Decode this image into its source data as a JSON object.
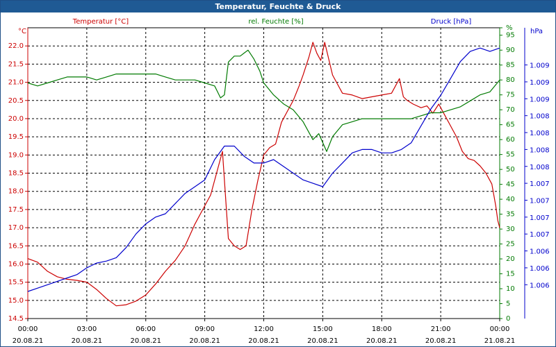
{
  "window": {
    "title": "Temperatur, Feuchte & Druck"
  },
  "colors": {
    "temperature": "#cc0000",
    "humidity": "#007a00",
    "pressure": "#0000cc",
    "grid": "#000000",
    "title_bg": "#1f5a94"
  },
  "chart_data": {
    "type": "line",
    "title": "Temperatur, Feuchte & Druck",
    "legend": {
      "temperature": "Temperatur [°C]",
      "humidity": "rel. Feuchte [%]",
      "pressure": "Druck [hPa]"
    },
    "units": {
      "left": "°C",
      "right_humidity": "%",
      "right_pressure": "hPa"
    },
    "x_axis": {
      "range_hours": [
        0,
        24
      ],
      "ticks": [
        {
          "h": 0,
          "time": "00:00",
          "date": "20.08.21"
        },
        {
          "h": 3,
          "time": "03:00",
          "date": "20.08.21"
        },
        {
          "h": 6,
          "time": "06:00",
          "date": "20.08.21"
        },
        {
          "h": 9,
          "time": "09:00",
          "date": "20.08.21"
        },
        {
          "h": 12,
          "time": "12:00",
          "date": "20.08.21"
        },
        {
          "h": 15,
          "time": "15:00",
          "date": "20.08.21"
        },
        {
          "h": 18,
          "time": "18:00",
          "date": "20.08.21"
        },
        {
          "h": 21,
          "time": "21:00",
          "date": "20.08.21"
        },
        {
          "h": 24,
          "time": "00:00",
          "date": "21.08.21"
        }
      ]
    },
    "y_left": {
      "ylim": [
        14.5,
        22.5
      ],
      "ticks": [
        "14.5",
        "15.0",
        "15.5",
        "16.0",
        "16.5",
        "17.0",
        "17.5",
        "18.0",
        "18.5",
        "19.0",
        "19.5",
        "20.0",
        "20.5",
        "21.0",
        "21.5",
        "22.0"
      ]
    },
    "y_humidity": {
      "ylim": [
        0,
        97.5
      ],
      "ticks": [
        "0",
        "5",
        "10",
        "15",
        "20",
        "25",
        "30",
        "35",
        "40",
        "45",
        "50",
        "55",
        "60",
        "65",
        "70",
        "75",
        "80",
        "85",
        "90",
        "95",
        "%"
      ]
    },
    "y_pressure": {
      "ylim": [
        1005.5,
        1009.8
      ],
      "ticks": [
        {
          "v": 1006.0,
          "label": "1.006"
        },
        {
          "v": 1006.25,
          "label": "1.006"
        },
        {
          "v": 1006.5,
          "label": "1.006"
        },
        {
          "v": 1006.75,
          "label": "1.007"
        },
        {
          "v": 1007.0,
          "label": "1.007"
        },
        {
          "v": 1007.25,
          "label": "1.007"
        },
        {
          "v": 1007.5,
          "label": "1.007"
        },
        {
          "v": 1007.75,
          "label": "1.008"
        },
        {
          "v": 1008.0,
          "label": "1.008"
        },
        {
          "v": 1008.25,
          "label": "1.008"
        },
        {
          "v": 1008.5,
          "label": "1.008"
        },
        {
          "v": 1008.75,
          "label": "1.009"
        },
        {
          "v": 1009.0,
          "label": "1.009"
        },
        {
          "v": 1009.25,
          "label": "1.009"
        }
      ]
    },
    "series": [
      {
        "name": "Temperatur [°C]",
        "axis": "left",
        "x": [
          0,
          0.5,
          1,
          1.5,
          2,
          2.5,
          3,
          3.5,
          4,
          4.5,
          5,
          5.5,
          6,
          6.5,
          7,
          7.5,
          8,
          8.5,
          9,
          9.3,
          9.6,
          9.9,
          10.2,
          10.5,
          10.8,
          11.1,
          11.4,
          11.7,
          12,
          12.3,
          12.6,
          12.9,
          13.2,
          13.5,
          13.8,
          14,
          14.3,
          14.5,
          14.7,
          14.9,
          15.1,
          15.5,
          16,
          16.5,
          17,
          17.5,
          18,
          18.5,
          18.9,
          19.1,
          19.3,
          19.6,
          20,
          20.3,
          20.6,
          20.9,
          21.2,
          21.5,
          21.8,
          22.1,
          22.4,
          22.7,
          23,
          23.3,
          23.6,
          23.8,
          23.9,
          24
        ],
        "values": [
          16.15,
          16.05,
          15.8,
          15.65,
          15.58,
          15.55,
          15.5,
          15.3,
          15.05,
          14.85,
          14.88,
          14.98,
          15.15,
          15.45,
          15.8,
          16.1,
          16.5,
          17.1,
          17.6,
          17.9,
          18.5,
          19.1,
          16.7,
          16.5,
          16.4,
          16.5,
          17.5,
          18.3,
          19.0,
          19.2,
          19.3,
          19.9,
          20.2,
          20.5,
          20.9,
          21.2,
          21.7,
          22.1,
          21.8,
          21.6,
          22.1,
          21.2,
          20.7,
          20.65,
          20.55,
          20.6,
          20.65,
          20.7,
          21.1,
          20.6,
          20.5,
          20.4,
          20.3,
          20.35,
          20.15,
          20.4,
          20.1,
          19.8,
          19.5,
          19.1,
          18.9,
          18.85,
          18.7,
          18.5,
          18.2,
          17.6,
          17.2,
          17.0
        ]
      },
      {
        "name": "rel. Feuchte [%]",
        "axis": "humidity",
        "x": [
          0,
          0.5,
          1,
          1.5,
          2,
          2.5,
          3,
          3.5,
          4,
          4.5,
          5,
          5.5,
          6,
          6.5,
          7,
          7.5,
          8,
          8.5,
          9,
          9.5,
          9.8,
          10,
          10.2,
          10.5,
          10.8,
          11,
          11.2,
          11.5,
          11.8,
          12,
          12.5,
          13,
          13.5,
          14,
          14.5,
          14.8,
          15,
          15.2,
          15.5,
          16,
          16.5,
          17,
          17.5,
          18,
          18.5,
          19,
          19.5,
          20,
          20.5,
          21,
          21.5,
          22,
          22.5,
          23,
          23.5,
          24
        ],
        "values": [
          79,
          78,
          79,
          80,
          81,
          81,
          81,
          80,
          81,
          82,
          82,
          82,
          82,
          82,
          81,
          80,
          80,
          80,
          79,
          78,
          74,
          75,
          86,
          88,
          88,
          89,
          90,
          87,
          83,
          79,
          75,
          72,
          70,
          66,
          60,
          62,
          59,
          56,
          61,
          65,
          66,
          67,
          67,
          67,
          67,
          67,
          67,
          68,
          69,
          69,
          70,
          71,
          73,
          75,
          76,
          80
        ]
      },
      {
        "name": "Druck [hPa]",
        "axis": "pressure",
        "x": [
          0,
          0.5,
          1,
          1.5,
          2,
          2.5,
          3,
          3.5,
          4,
          4.5,
          5,
          5.5,
          6,
          6.5,
          7,
          7.5,
          8,
          8.5,
          9,
          9.5,
          10,
          10.5,
          11,
          11.5,
          12,
          12.5,
          13,
          13.5,
          14,
          14.5,
          15,
          15.5,
          16,
          16.5,
          17,
          17.5,
          18,
          18.5,
          19,
          19.5,
          20,
          20.5,
          21,
          21.5,
          22,
          22.5,
          23,
          23.5,
          24
        ],
        "values": [
          1005.9,
          1005.95,
          1006.0,
          1006.05,
          1006.1,
          1006.15,
          1006.25,
          1006.32,
          1006.35,
          1006.4,
          1006.55,
          1006.75,
          1006.9,
          1007.0,
          1007.05,
          1007.2,
          1007.35,
          1007.45,
          1007.55,
          1007.85,
          1008.05,
          1008.05,
          1007.9,
          1007.8,
          1007.8,
          1007.85,
          1007.75,
          1007.65,
          1007.55,
          1007.5,
          1007.45,
          1007.65,
          1007.8,
          1007.95,
          1008.0,
          1008.0,
          1007.95,
          1007.95,
          1008.0,
          1008.1,
          1008.35,
          1008.6,
          1008.8,
          1009.05,
          1009.3,
          1009.45,
          1009.5,
          1009.45,
          1009.5
        ]
      }
    ]
  }
}
